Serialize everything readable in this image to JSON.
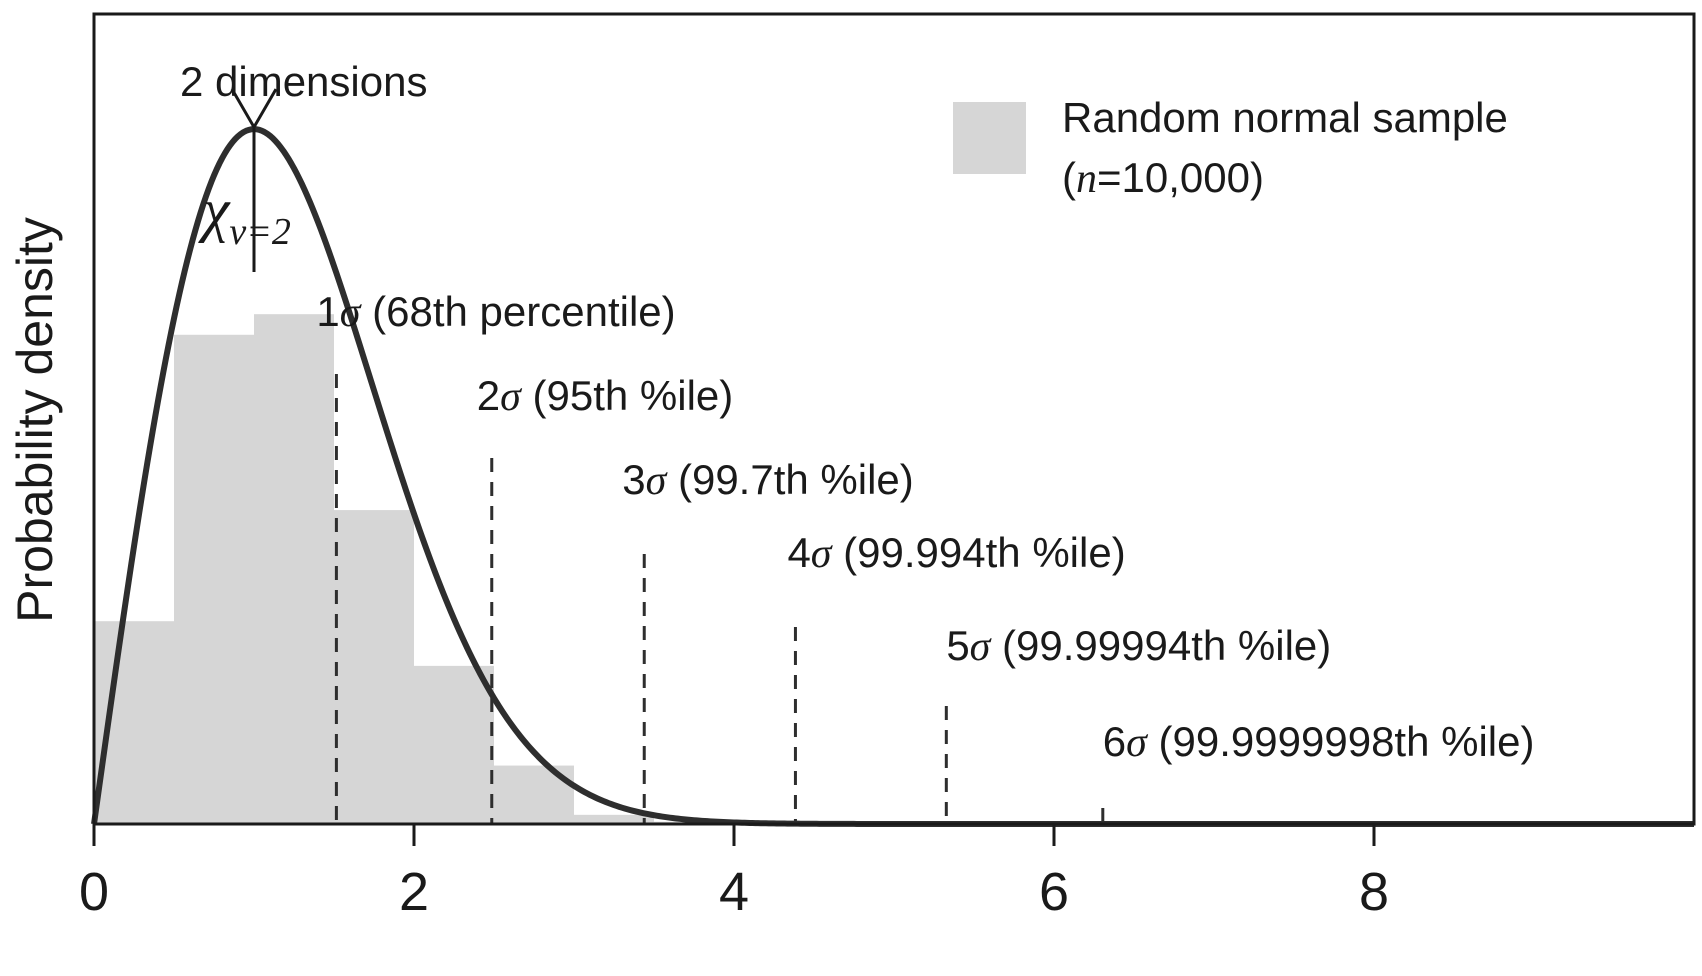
{
  "chart_data": {
    "type": "bar",
    "title": "2 dimensions",
    "ylabel": "Probability density",
    "xlabel": "",
    "xlim": [
      0,
      10
    ],
    "ylim": [
      0,
      0.707
    ],
    "x_ticks": [
      0,
      2,
      4,
      6,
      8
    ],
    "colors": {
      "histogram": "#d6d6d6",
      "curve": "#2e2e2e",
      "axis": "#1a1a1a"
    },
    "histogram": {
      "name": "Random normal sample",
      "name_suffix": "(n=10,000)",
      "bins": [
        {
          "x0": 0.0,
          "x1": 0.5,
          "density": 0.177
        },
        {
          "x0": 0.5,
          "x1": 1.0,
          "density": 0.427
        },
        {
          "x0": 1.0,
          "x1": 1.5,
          "density": 0.445
        },
        {
          "x0": 1.5,
          "x1": 2.0,
          "density": 0.274
        },
        {
          "x0": 2.0,
          "x1": 2.5,
          "density": 0.138
        },
        {
          "x0": 2.5,
          "x1": 3.0,
          "density": 0.051
        },
        {
          "x0": 3.0,
          "x1": 3.5,
          "density": 0.008
        },
        {
          "x0": 3.5,
          "x1": 4.0,
          "density": 0.002
        }
      ]
    },
    "curve": {
      "name": "χ",
      "subscript": "ν=2",
      "peak_x": 1.0,
      "function": "chi_2"
    },
    "sigma_lines": [
      {
        "x": 1.515,
        "label_sigma": "1",
        "label_rest": " (68th percentile)"
      },
      {
        "x": 2.486,
        "label_sigma": "2",
        "label_rest": " (95th %ile)"
      },
      {
        "x": 3.439,
        "label_sigma": "3",
        "label_rest": " (99.7th %ile)"
      },
      {
        "x": 4.384,
        "label_sigma": "4",
        "label_rest": " (99.994th %ile)"
      },
      {
        "x": 5.327,
        "label_sigma": "5",
        "label_rest": " (99.99994th %ile)"
      },
      {
        "x": 6.305,
        "label_sigma": "6",
        "label_rest": " (99.9999998th %ile)"
      }
    ],
    "legend": {
      "line1": "Random normal sample",
      "line2_prefix": "(",
      "line2_italic": "n",
      "line2_suffix": "=10,000)",
      "position": "top-right"
    }
  }
}
